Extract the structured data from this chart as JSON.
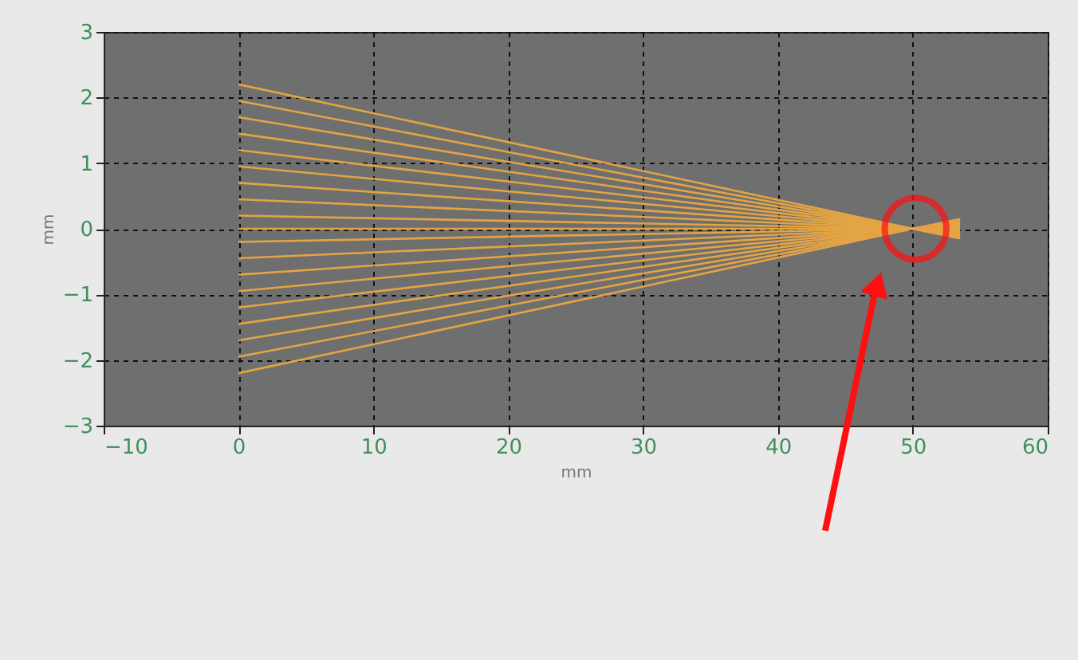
{
  "chart_data": {
    "type": "line",
    "xlabel": "mm",
    "ylabel": "mm",
    "xlim": [
      -10,
      60
    ],
    "ylim": [
      -3,
      3
    ],
    "xticks": [
      -10,
      0,
      10,
      20,
      30,
      40,
      50,
      60
    ],
    "yticks": [
      -3,
      -2,
      -1,
      0,
      1,
      2,
      3
    ],
    "grid": true,
    "legend": false,
    "marker": "none",
    "line_style": "solid",
    "series": [
      {
        "color": "#e3a444",
        "x": [
          0,
          50,
          53.5
        ],
        "values": [
          2.2,
          0,
          -0.15
        ]
      },
      {
        "color": "#e3a444",
        "x": [
          0,
          50,
          53.5
        ],
        "values": [
          1.95,
          0,
          -0.14
        ]
      },
      {
        "color": "#e3a444",
        "x": [
          0,
          50,
          53.5
        ],
        "values": [
          1.7,
          0,
          -0.12
        ]
      },
      {
        "color": "#e3a444",
        "x": [
          0,
          50,
          53.5
        ],
        "values": [
          1.45,
          0,
          -0.1
        ]
      },
      {
        "color": "#e3a444",
        "x": [
          0,
          50,
          53.5
        ],
        "values": [
          1.2,
          0,
          -0.08
        ]
      },
      {
        "color": "#e3a444",
        "x": [
          0,
          50,
          53.5
        ],
        "values": [
          0.95,
          0,
          -0.07
        ]
      },
      {
        "color": "#e3a444",
        "x": [
          0,
          50,
          53.5
        ],
        "values": [
          0.7,
          0,
          -0.05
        ]
      },
      {
        "color": "#e3a444",
        "x": [
          0,
          50,
          53.5
        ],
        "values": [
          0.45,
          0,
          -0.03
        ]
      },
      {
        "color": "#e3a444",
        "x": [
          0,
          50,
          53.5
        ],
        "values": [
          0.2,
          0,
          -0.01
        ]
      },
      {
        "color": "#e3a444",
        "x": [
          0,
          50,
          53.5
        ],
        "values": [
          0,
          0,
          0
        ]
      },
      {
        "color": "#e3a444",
        "x": [
          0,
          50,
          53.5
        ],
        "values": [
          -0.2,
          0,
          0.01
        ]
      },
      {
        "color": "#e3a444",
        "x": [
          0,
          50,
          53.5
        ],
        "values": [
          -0.45,
          0,
          0.03
        ]
      },
      {
        "color": "#e3a444",
        "x": [
          0,
          50,
          53.5
        ],
        "values": [
          -0.7,
          0,
          0.05
        ]
      },
      {
        "color": "#e3a444",
        "x": [
          0,
          50,
          53.5
        ],
        "values": [
          -0.95,
          0,
          0.07
        ]
      },
      {
        "color": "#e3a444",
        "x": [
          0,
          50,
          53.5
        ],
        "values": [
          -1.2,
          0,
          0.08
        ]
      },
      {
        "color": "#e3a444",
        "x": [
          0,
          50,
          53.5
        ],
        "values": [
          -1.45,
          0,
          0.1
        ]
      },
      {
        "color": "#e3a444",
        "x": [
          0,
          50,
          53.5
        ],
        "values": [
          -1.7,
          0,
          0.12
        ]
      },
      {
        "color": "#e3a444",
        "x": [
          0,
          50,
          53.5
        ],
        "values": [
          -1.95,
          0,
          0.14
        ]
      },
      {
        "color": "#e3a444",
        "x": [
          0,
          50,
          53.5
        ],
        "values": [
          -2.2,
          0,
          0.15
        ]
      }
    ]
  }
}
